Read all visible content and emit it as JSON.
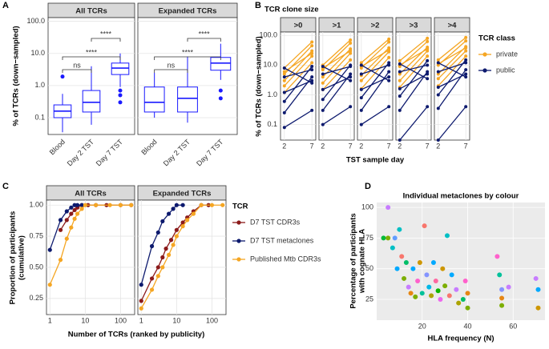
{
  "chart_data": [
    {
      "label": "A",
      "type": "box",
      "ylabel": "% of TCRs (down−sampled)",
      "facets": [
        "All TCRs",
        "Expanded TCRs"
      ],
      "categories": [
        "Blood",
        "Day 2 TST",
        "Day 7 TST"
      ],
      "log_y": true,
      "ylim": [
        0.03,
        130
      ],
      "yticks": [
        0.1,
        {
          "value": 1,
          "label": "1.0"
        },
        {
          "value": 10,
          "label": "10.0"
        },
        {
          "value": 100,
          "label": "100.0"
        }
      ],
      "color": "#1a1aff",
      "boxes": [
        [
          {
            "min": 0.035,
            "q1": 0.1,
            "median": 0.16,
            "q3": 0.25,
            "max": 0.55,
            "outliers": [
              1.9
            ]
          },
          {
            "min": 0.06,
            "q1": 0.15,
            "median": 0.3,
            "q3": 0.7,
            "max": 4,
            "outliers": []
          },
          {
            "min": 0.9,
            "q1": 2.2,
            "median": 3.5,
            "q3": 5,
            "max": 10,
            "outliers": [
              0.3,
              0.5,
              0.7
            ]
          }
        ],
        [
          {
            "min": 0.1,
            "q1": 0.15,
            "median": 0.3,
            "q3": 0.9,
            "max": 2.5,
            "outliers": []
          },
          {
            "min": 0.07,
            "q1": 0.15,
            "median": 0.4,
            "q3": 0.9,
            "max": 8,
            "outliers": []
          },
          {
            "min": 1.5,
            "q1": 3,
            "median": 5,
            "q3": 7.5,
            "max": 20,
            "outliers": [
              0.4,
              0.7
            ]
          }
        ]
      ],
      "annotations": [
        [
          "ns",
          "****",
          "****"
        ],
        [
          "ns",
          "****",
          "****"
        ]
      ]
    },
    {
      "label": "B",
      "type": "slope",
      "title": "TCR clone size",
      "xlabel": "TST sample day",
      "ylabel": "% of TCRs (down−sampled)",
      "facets": [
        ">0",
        ">1",
        ">2",
        ">3",
        ">4"
      ],
      "x": [
        2,
        7
      ],
      "xlim": [
        1.3,
        7.7
      ],
      "xticks": [
        2,
        7
      ],
      "log_y": true,
      "ylim": [
        0.03,
        130
      ],
      "yticks": [
        0.1,
        {
          "value": 1,
          "label": "1.0"
        },
        {
          "value": 10,
          "label": "10.0"
        },
        {
          "value": 100,
          "label": "100.0"
        }
      ],
      "legend_title": "TCR class",
      "series": [
        {
          "name": "private",
          "color": "#f5a623",
          "values": [
            [
              [
                3,
                30
              ],
              [
                5,
                45
              ],
              [
                8,
                60
              ],
              [
                2,
                20
              ],
              [
                1.2,
                12
              ],
              [
                6,
                25
              ]
            ],
            [
              [
                4,
                35
              ],
              [
                7,
                55
              ],
              [
                10,
                70
              ],
              [
                2.5,
                25
              ],
              [
                1.5,
                15
              ],
              [
                8,
                30
              ]
            ],
            [
              [
                4.5,
                38
              ],
              [
                8,
                60
              ],
              [
                12,
                75
              ],
              [
                3,
                28
              ],
              [
                1.6,
                18
              ],
              [
                9,
                32
              ]
            ],
            [
              [
                5,
                40
              ],
              [
                9,
                62
              ],
              [
                14,
                80
              ],
              [
                3,
                30
              ],
              [
                1.8,
                20
              ],
              [
                10,
                35
              ]
            ],
            [
              [
                5,
                42
              ],
              [
                10,
                65
              ],
              [
                15,
                85
              ],
              [
                3.5,
                30
              ],
              [
                2,
                20
              ],
              [
                11,
                38
              ]
            ]
          ]
        },
        {
          "name": "public",
          "color": "#0d1a6e",
          "values": [
            [
              [
                0.08,
                0.3
              ],
              [
                0.25,
                4
              ],
              [
                0.6,
                9
              ],
              [
                1.2,
                3
              ],
              [
                4,
                7
              ],
              [
                8,
                2.5
              ]
            ],
            [
              [
                0.1,
                0.4
              ],
              [
                0.3,
                5
              ],
              [
                0.7,
                10
              ],
              [
                1.5,
                4
              ],
              [
                5,
                9
              ],
              [
                9,
                3
              ]
            ],
            [
              [
                0.1,
                0.4
              ],
              [
                0.3,
                6
              ],
              [
                0.8,
                12
              ],
              [
                1.5,
                4
              ],
              [
                5,
                10
              ],
              [
                10,
                3
              ]
            ],
            [
              [
                0.03,
                0.4
              ],
              [
                0.3,
                6
              ],
              [
                0.9,
                14
              ],
              [
                1.6,
                5
              ],
              [
                6,
                10
              ],
              [
                11,
                3.5
              ]
            ],
            [
              [
                0.03,
                0.4
              ],
              [
                0.35,
                7
              ],
              [
                1,
                15
              ],
              [
                1.8,
                5
              ],
              [
                6,
                12
              ],
              [
                12,
                4
              ]
            ]
          ]
        }
      ]
    },
    {
      "label": "C",
      "type": "line",
      "xlabel": "Number of TCRs (ranked by publicity)",
      "ylabel": [
        "Proportion of participants",
        "(cumulative)"
      ],
      "facets": [
        "All TCRs",
        "Expanded TCRs"
      ],
      "log_x": true,
      "xlim": [
        0.8,
        250
      ],
      "xticks": [
        1,
        10,
        100
      ],
      "ylim": [
        0.12,
        1.04
      ],
      "yticks": [
        0.25,
        {
          "value": 0.5,
          "label": "0.50"
        },
        0.75,
        {
          "value": 1,
          "label": "1.00"
        }
      ],
      "legend_title": "TCR",
      "series": [
        {
          "name": "D7 TST CDR3s",
          "color": "#8b1a1a",
          "x": [
            [
              2,
              3,
              4,
              5,
              6,
              8,
              12,
              20,
              40,
              100,
              200
            ],
            [
              1,
              2,
              3,
              4,
              5,
              7,
              10,
              15,
              20,
              30,
              50,
              80
            ]
          ],
          "values": [
            [
              0.8,
              0.88,
              0.93,
              0.96,
              0.98,
              1,
              1,
              1,
              1,
              1,
              1
            ],
            [
              0.23,
              0.41,
              0.5,
              0.58,
              0.65,
              0.72,
              0.8,
              0.86,
              0.9,
              0.95,
              1,
              1
            ]
          ]
        },
        {
          "name": "D7 TST metaclones",
          "color": "#0d1a6e",
          "x": [
            [
              1,
              2,
              3,
              4,
              5,
              6,
              8
            ],
            [
              1,
              2,
              3,
              4,
              6,
              8,
              10,
              15
            ]
          ],
          "values": [
            [
              0.64,
              0.88,
              0.95,
              0.98,
              1,
              1,
              1
            ],
            [
              0.36,
              0.67,
              0.78,
              0.87,
              0.93,
              0.97,
              1,
              1
            ]
          ]
        },
        {
          "name": "Published Mtb CDR3s",
          "color": "#f5a623",
          "x": [
            [
              1,
              2,
              3,
              4,
              5,
              6,
              8,
              10,
              20,
              50,
              100,
              200
            ],
            [
              1,
              2,
              3,
              4,
              6,
              8,
              10,
              15,
              20,
              30,
              50,
              100,
              200
            ]
          ],
          "values": [
            [
              0.36,
              0.56,
              0.73,
              0.82,
              0.89,
              0.93,
              0.97,
              1,
              1,
              1,
              1,
              1
            ],
            [
              0.17,
              0.32,
              0.43,
              0.5,
              0.6,
              0.68,
              0.75,
              0.83,
              0.88,
              0.93,
              1,
              1,
              1
            ]
          ]
        }
      ]
    },
    {
      "label": "D",
      "type": "scatter",
      "title": "Individual metaclones by colour",
      "xlabel": "HLA frequency (N)",
      "ylabel": [
        "Percentage of participants",
        "with cognate HLA"
      ],
      "xlim": [
        0,
        74
      ],
      "xticks": [
        20,
        40,
        60
      ],
      "ylim": [
        8,
        104
      ],
      "yticks": [
        25,
        50,
        75,
        100
      ],
      "x": [
        5,
        3,
        5,
        7,
        8,
        9,
        10,
        11,
        12,
        13,
        14,
        15,
        16,
        17,
        18,
        19,
        20,
        21,
        22,
        23,
        24,
        25,
        26,
        27,
        28,
        29,
        30,
        31,
        32,
        33,
        35,
        36,
        38,
        39,
        40,
        53,
        54,
        55,
        55,
        58,
        70,
        71,
        71,
        55,
        40
      ],
      "values": [
        100,
        75,
        75,
        67,
        75,
        50,
        82,
        60,
        42,
        55,
        35,
        30,
        50,
        27,
        40,
        55,
        30,
        85,
        45,
        35,
        28,
        55,
        40,
        32,
        25,
        50,
        36,
        77,
        28,
        45,
        33,
        22,
        25,
        40,
        30,
        60,
        45,
        33,
        20,
        35,
        42,
        33,
        18,
        26,
        18
      ],
      "colors": [
        "#c77cff",
        "#00ba38",
        "#7cae00",
        "#00bfc4",
        "#619cff",
        "#00a9ff",
        "#00bfc4",
        "#f8766d",
        "#7cae00",
        "#00be67",
        "#c77cff",
        "#e68613",
        "#00a9ff",
        "#7cae00",
        "#ff61cc",
        "#cd9600",
        "#00c19a",
        "#f8766d",
        "#8494ff",
        "#00b8e7",
        "#aba300",
        "#00a9ff",
        "#ff68a1",
        "#0cb702",
        "#ed68ed",
        "#cd9600",
        "#7cae00",
        "#00bfc4",
        "#f8766d",
        "#00a9ff",
        "#c77cff",
        "#aba300",
        "#00be67",
        "#ff61cc",
        "#e68613",
        "#ff61cc",
        "#00c19a",
        "#8494ff",
        "#7cae00",
        "#c77cff",
        "#c77cff",
        "#00a9ff",
        "#cd9600",
        "#e68613",
        "#7cae00"
      ]
    }
  ]
}
